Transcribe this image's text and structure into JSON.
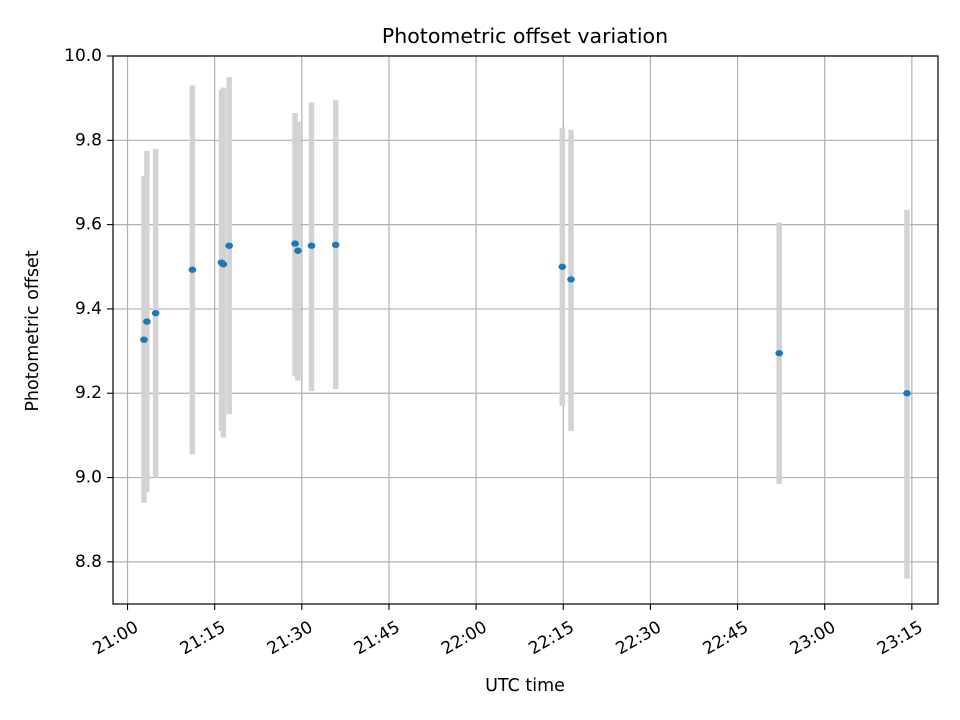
{
  "chart_data": {
    "type": "scatter",
    "title": "Photometric offset variation",
    "xlabel": "UTC time",
    "ylabel": "Photometric offset",
    "x_axis_kind": "time",
    "xlim": [
      "20:57:30",
      "23:19:30"
    ],
    "ylim": [
      8.7,
      10.0
    ],
    "x_ticks": [
      "21:00",
      "21:15",
      "21:30",
      "21:45",
      "22:00",
      "22:15",
      "22:30",
      "22:45",
      "23:00",
      "23:15"
    ],
    "y_ticks": [
      "8.8",
      "9.0",
      "9.2",
      "9.4",
      "9.6",
      "9.8",
      "10.0"
    ],
    "grid": true,
    "colors": {
      "point": "#1f77b4",
      "errorbar": "#d3d3d3",
      "grid": "#b0b0b0",
      "frame": "#000000"
    },
    "points": [
      {
        "time": "21:02:50",
        "value": 9.327,
        "low": 8.94,
        "high": 9.715
      },
      {
        "time": "21:03:20",
        "value": 9.37,
        "low": 8.965,
        "high": 9.775
      },
      {
        "time": "21:04:50",
        "value": 9.39,
        "low": 9.0,
        "high": 9.78
      },
      {
        "time": "21:11:10",
        "value": 9.493,
        "low": 9.055,
        "high": 9.93
      },
      {
        "time": "21:16:10",
        "value": 9.51,
        "low": 9.11,
        "high": 9.92
      },
      {
        "time": "21:16:30",
        "value": 9.506,
        "low": 9.095,
        "high": 9.925
      },
      {
        "time": "21:17:30",
        "value": 9.55,
        "low": 9.15,
        "high": 9.95
      },
      {
        "time": "21:28:50",
        "value": 9.555,
        "low": 9.24,
        "high": 9.865
      },
      {
        "time": "21:29:20",
        "value": 9.538,
        "low": 9.23,
        "high": 9.845
      },
      {
        "time": "21:31:40",
        "value": 9.55,
        "low": 9.205,
        "high": 9.89
      },
      {
        "time": "21:35:50",
        "value": 9.552,
        "low": 9.21,
        "high": 9.895
      },
      {
        "time": "22:14:50",
        "value": 9.5,
        "low": 9.17,
        "high": 9.83
      },
      {
        "time": "22:16:20",
        "value": 9.47,
        "low": 9.11,
        "high": 9.825
      },
      {
        "time": "22:52:10",
        "value": 9.295,
        "low": 8.985,
        "high": 9.605
      },
      {
        "time": "23:14:10",
        "value": 9.2,
        "low": 8.76,
        "high": 9.635
      }
    ]
  }
}
